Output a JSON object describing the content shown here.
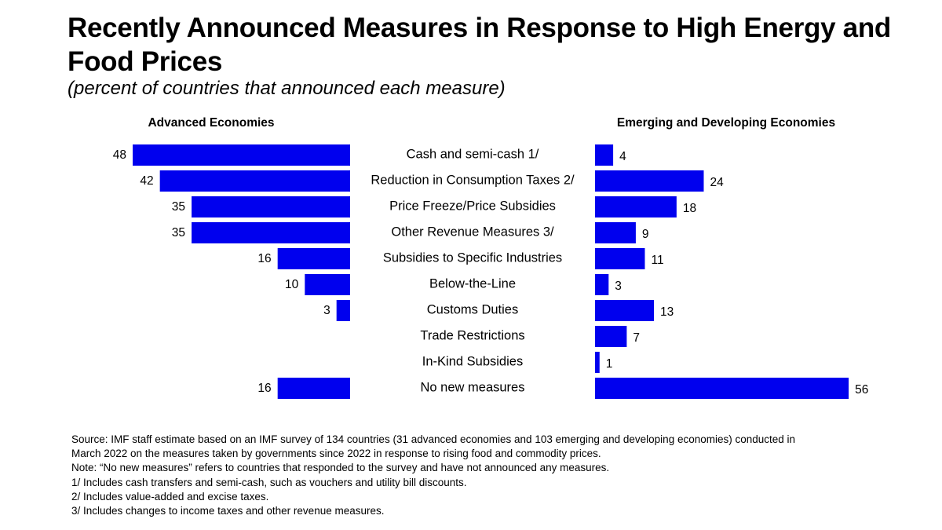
{
  "chart_data": {
    "type": "bar",
    "title": "Recently Announced Measures in Response to High Energy and Food Prices",
    "subtitle": "(percent of countries that announced each measure)",
    "categories": [
      "Cash and semi-cash 1/",
      "Reduction in Consumption Taxes 2/",
      "Price Freeze/Price Subsidies",
      "Other Revenue Measures 3/",
      "Subsidies to Specific Industries",
      "Below-the-Line",
      "Customs Duties",
      "Trade Restrictions",
      "In-Kind Subsidies",
      "No new measures"
    ],
    "series": [
      {
        "name": "Advanced Economies",
        "values": [
          48,
          42,
          35,
          35,
          16,
          10,
          3,
          null,
          null,
          16
        ],
        "color": "#0000ee"
      },
      {
        "name": "Emerging and Developing Economies",
        "values": [
          4,
          24,
          18,
          9,
          11,
          3,
          13,
          7,
          1,
          56
        ],
        "color": "#0000ee"
      }
    ],
    "xlim": [
      0,
      56
    ],
    "grid": false,
    "xlabel": "",
    "ylabel": ""
  },
  "notes": [
    "Source: IMF staff estimate based on an IMF survey of 134 countries (31 advanced economies and 103 emerging and developing economies) conducted in",
    "March 2022 on the measures taken by governments since 2022 in response to rising food and commodity prices.",
    "Note: “No new measures” refers to countries that responded to the survey and have not announced any measures.",
    "1/ Includes cash transfers and semi-cash, such as vouchers and utility bill discounts.",
    "2/ Includes value-added and excise taxes.",
    "3/ Includes changes to income taxes and other revenue measures."
  ]
}
